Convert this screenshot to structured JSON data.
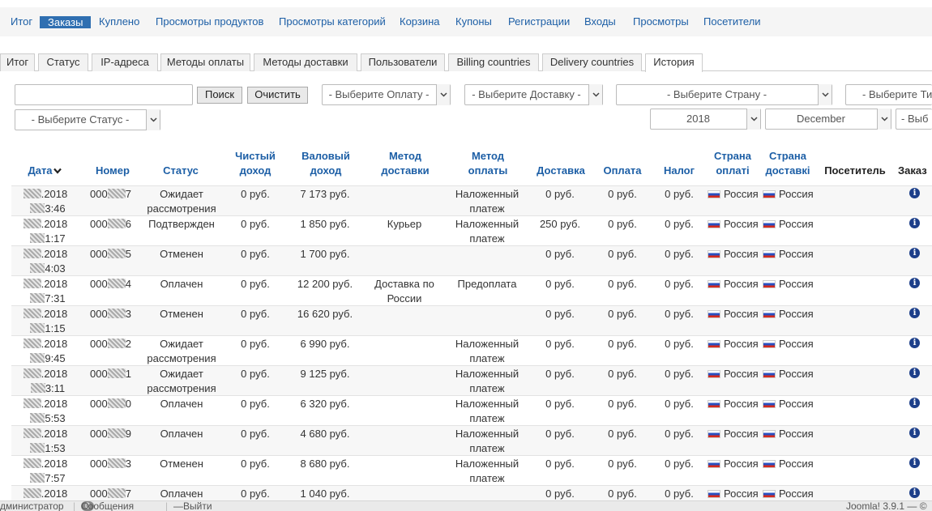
{
  "nav": {
    "items": [
      "Итог",
      "Заказы",
      "Куплено",
      "Просмотры продуктов",
      "Просмотры категорий",
      "Корзина",
      "Купоны",
      "Регистрации",
      "Входы",
      "Просмотры",
      "Посетители"
    ],
    "active": "Заказы"
  },
  "tabs": {
    "items": [
      "Итог",
      "Статус",
      "IP-адреса",
      "Методы оплаты",
      "Методы доставки",
      "Пользователи",
      "Billing countries",
      "Delivery countries",
      "История"
    ],
    "active": "История"
  },
  "filters": {
    "search_value": "",
    "search_button": "Поиск",
    "clear_button": "Очистить",
    "payment_select": "- Выберите Оплату -",
    "delivery_select": "- Выберите Доставку -",
    "country_select": "- Выберите Страну -",
    "type_select": "- Выберите Тип П",
    "status_select": "- Выберите Статус -",
    "year_select": "2018",
    "month_select": "December",
    "extra_select": "- Выб"
  },
  "table": {
    "headers": {
      "date": "Дата",
      "number": "Номер",
      "status": "Статус",
      "net_l1": "Чистый",
      "net_l2": "доход",
      "gross_l1": "Валовый",
      "gross_l2": "доход",
      "ship_method_l1": "Метод",
      "ship_method_l2": "доставки",
      "pay_method_l1": "Метод",
      "pay_method_l2": "оплаты",
      "shipping": "Доставка",
      "payment": "Оплата",
      "tax": "Налог",
      "bill_country_l1": "Страна",
      "bill_country_l2": "оплаті",
      "ship_country_l1": "Страна",
      "ship_country_l2": "доставкі",
      "visitor": "Посетитель",
      "order": "Заказ"
    },
    "rows": [
      {
        "date_tail": ".2018",
        "time_tail": "3:46",
        "number_prefix": "000",
        "number_suffix": "7",
        "status_l1": "Ожидает",
        "status_l2": "рассмотрения",
        "net": "0 руб.",
        "gross": "7 173 руб.",
        "ship_l1": "",
        "ship_l2": "",
        "pay_l1": "Наложенный",
        "pay_l2": "платеж",
        "shipping": "0 руб.",
        "payment": "0 руб.",
        "tax": "0 руб.",
        "bill_country": "Россия",
        "ship_country": "Россия"
      },
      {
        "date_tail": ".2018",
        "time_tail": "1:17",
        "number_prefix": "000",
        "number_suffix": "6",
        "status_l1": "Подтвержден",
        "status_l2": "",
        "net": "0 руб.",
        "gross": "1 850 руб.",
        "ship_l1": "Курьер",
        "ship_l2": "",
        "pay_l1": "Наложенный",
        "pay_l2": "платеж",
        "shipping": "250 руб.",
        "payment": "0 руб.",
        "tax": "0 руб.",
        "bill_country": "Россия",
        "ship_country": "Россия"
      },
      {
        "date_tail": ".2018",
        "time_tail": "4:03",
        "number_prefix": "000",
        "number_suffix": "5",
        "status_l1": "Отменен",
        "status_l2": "",
        "net": "0 руб.",
        "gross": "1 700 руб.",
        "ship_l1": "",
        "ship_l2": "",
        "pay_l1": "",
        "pay_l2": "",
        "shipping": "0 руб.",
        "payment": "0 руб.",
        "tax": "0 руб.",
        "bill_country": "Россия",
        "ship_country": "Россия"
      },
      {
        "date_tail": ".2018",
        "time_tail": "7:31",
        "number_prefix": "000",
        "number_suffix": "4",
        "status_l1": "Оплачен",
        "status_l2": "",
        "net": "0 руб.",
        "gross": "12 200 руб.",
        "ship_l1": "Доставка по",
        "ship_l2": "России",
        "pay_l1": "Предоплата",
        "pay_l2": "",
        "shipping": "0 руб.",
        "payment": "0 руб.",
        "tax": "0 руб.",
        "bill_country": "Россия",
        "ship_country": "Россия"
      },
      {
        "date_tail": ".2018",
        "time_tail": "1:15",
        "number_prefix": "000",
        "number_suffix": "3",
        "status_l1": "Отменен",
        "status_l2": "",
        "net": "0 руб.",
        "gross": "16 620 руб.",
        "ship_l1": "",
        "ship_l2": "",
        "pay_l1": "",
        "pay_l2": "",
        "shipping": "0 руб.",
        "payment": "0 руб.",
        "tax": "0 руб.",
        "bill_country": "Россия",
        "ship_country": "Россия"
      },
      {
        "date_tail": ".2018",
        "time_tail": "9:45",
        "number_prefix": "000",
        "number_suffix": "2",
        "status_l1": "Ожидает",
        "status_l2": "рассмотрения",
        "net": "0 руб.",
        "gross": "6 990 руб.",
        "ship_l1": "",
        "ship_l2": "",
        "pay_l1": "Наложенный",
        "pay_l2": "платеж",
        "shipping": "0 руб.",
        "payment": "0 руб.",
        "tax": "0 руб.",
        "bill_country": "Россия",
        "ship_country": "Россия"
      },
      {
        "date_tail": ".2018",
        "time_tail": "3:11",
        "number_prefix": "000",
        "number_suffix": "1",
        "status_l1": "Ожидает",
        "status_l2": "рассмотрения",
        "net": "0 руб.",
        "gross": "9 125 руб.",
        "ship_l1": "",
        "ship_l2": "",
        "pay_l1": "Наложенный",
        "pay_l2": "платеж",
        "shipping": "0 руб.",
        "payment": "0 руб.",
        "tax": "0 руб.",
        "bill_country": "Россия",
        "ship_country": "Россия"
      },
      {
        "date_tail": ".2018",
        "time_tail": "5:53",
        "number_prefix": "000",
        "number_suffix": "0",
        "status_l1": "Оплачен",
        "status_l2": "",
        "net": "0 руб.",
        "gross": "6 320 руб.",
        "ship_l1": "",
        "ship_l2": "",
        "pay_l1": "Наложенный",
        "pay_l2": "платеж",
        "shipping": "0 руб.",
        "payment": "0 руб.",
        "tax": "0 руб.",
        "bill_country": "Россия",
        "ship_country": "Россия"
      },
      {
        "date_tail": ".2018",
        "time_tail": "1:53",
        "number_prefix": "000",
        "number_suffix": "9",
        "status_l1": "Оплачен",
        "status_l2": "",
        "net": "0 руб.",
        "gross": "4 680 руб.",
        "ship_l1": "",
        "ship_l2": "",
        "pay_l1": "Наложенный",
        "pay_l2": "платеж",
        "shipping": "0 руб.",
        "payment": "0 руб.",
        "tax": "0 руб.",
        "bill_country": "Россия",
        "ship_country": "Россия"
      },
      {
        "date_tail": ".2018",
        "time_tail": "7:57",
        "number_prefix": "000",
        "number_suffix": "3",
        "status_l1": "Отменен",
        "status_l2": "",
        "net": "0 руб.",
        "gross": "8 680 руб.",
        "ship_l1": "",
        "ship_l2": "",
        "pay_l1": "Наложенный",
        "pay_l2": "платеж",
        "shipping": "0 руб.",
        "payment": "0 руб.",
        "tax": "0 руб.",
        "bill_country": "Россия",
        "ship_country": "Россия"
      },
      {
        "date_tail": ".2018",
        "time_tail": "",
        "number_prefix": "000",
        "number_suffix": "7",
        "status_l1": "Оплачен",
        "status_l2": "",
        "net": "0 руб.",
        "gross": "1 040 руб.",
        "ship_l1": "",
        "ship_l2": "",
        "pay_l1": "",
        "pay_l2": "",
        "shipping": "0 руб.",
        "payment": "0 руб.",
        "tax": "0 руб.",
        "bill_country": "Россия",
        "ship_country": "Россия"
      }
    ]
  },
  "footer": {
    "user": "дминистратор",
    "messages_count": "0",
    "messages": "Сообщения",
    "logout": "Выйти",
    "version": "Joomla! 3.9.1 — ©"
  },
  "icons": {
    "sort": "sort-desc-icon",
    "info": "info-icon",
    "flag": "russia-flag-icon",
    "dropdown": "chevron-down-icon"
  }
}
